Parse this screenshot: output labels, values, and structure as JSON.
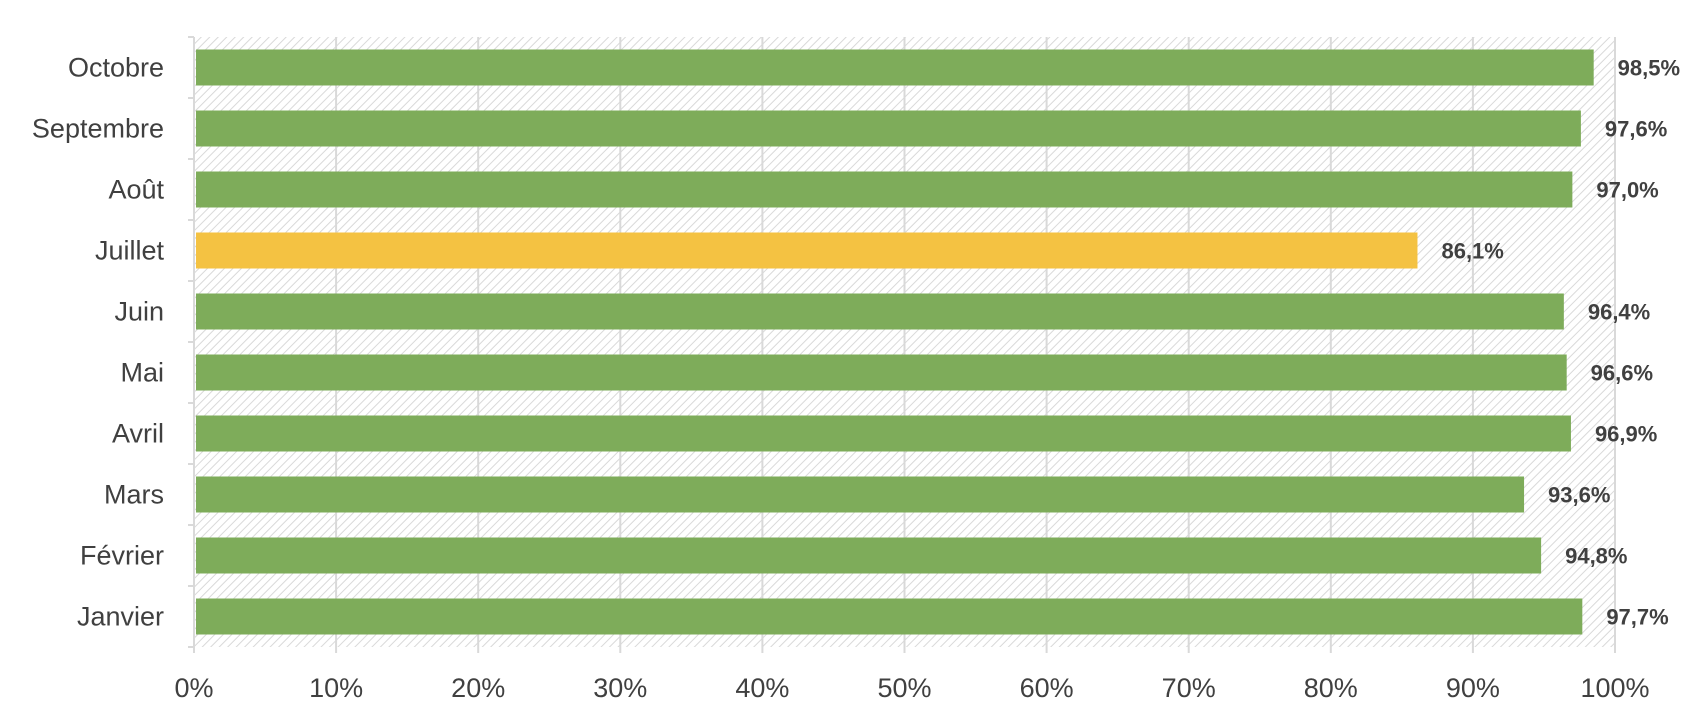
{
  "chart_data": {
    "type": "bar",
    "orientation": "horizontal",
    "categories": [
      "Janvier",
      "Février",
      "Mars",
      "Avril",
      "Mai",
      "Juin",
      "Juillet",
      "Août",
      "Septembre",
      "Octobre"
    ],
    "values": [
      97.7,
      94.8,
      93.6,
      96.9,
      96.6,
      96.4,
      86.1,
      97.0,
      97.6,
      98.5
    ],
    "data_labels": [
      "97,7%",
      "94,8%",
      "93,6%",
      "96,9%",
      "96,6%",
      "96,4%",
      "86,1%",
      "97,0%",
      "97,6%",
      "98,5%"
    ],
    "bar_colors": [
      "#7eac5a",
      "#7eac5a",
      "#7eac5a",
      "#7eac5a",
      "#7eac5a",
      "#7eac5a",
      "#f4c242",
      "#7eac5a",
      "#7eac5a",
      "#7eac5a"
    ],
    "xlim": [
      0,
      100
    ],
    "x_ticks": [
      0,
      10,
      20,
      30,
      40,
      50,
      60,
      70,
      80,
      90,
      100
    ],
    "x_tick_labels": [
      "0%",
      "10%",
      "20%",
      "30%",
      "40%",
      "50%",
      "60%",
      "70%",
      "80%",
      "90%",
      "100%"
    ],
    "grid": true,
    "legend": "none",
    "title": "",
    "xlabel": "",
    "ylabel": ""
  }
}
